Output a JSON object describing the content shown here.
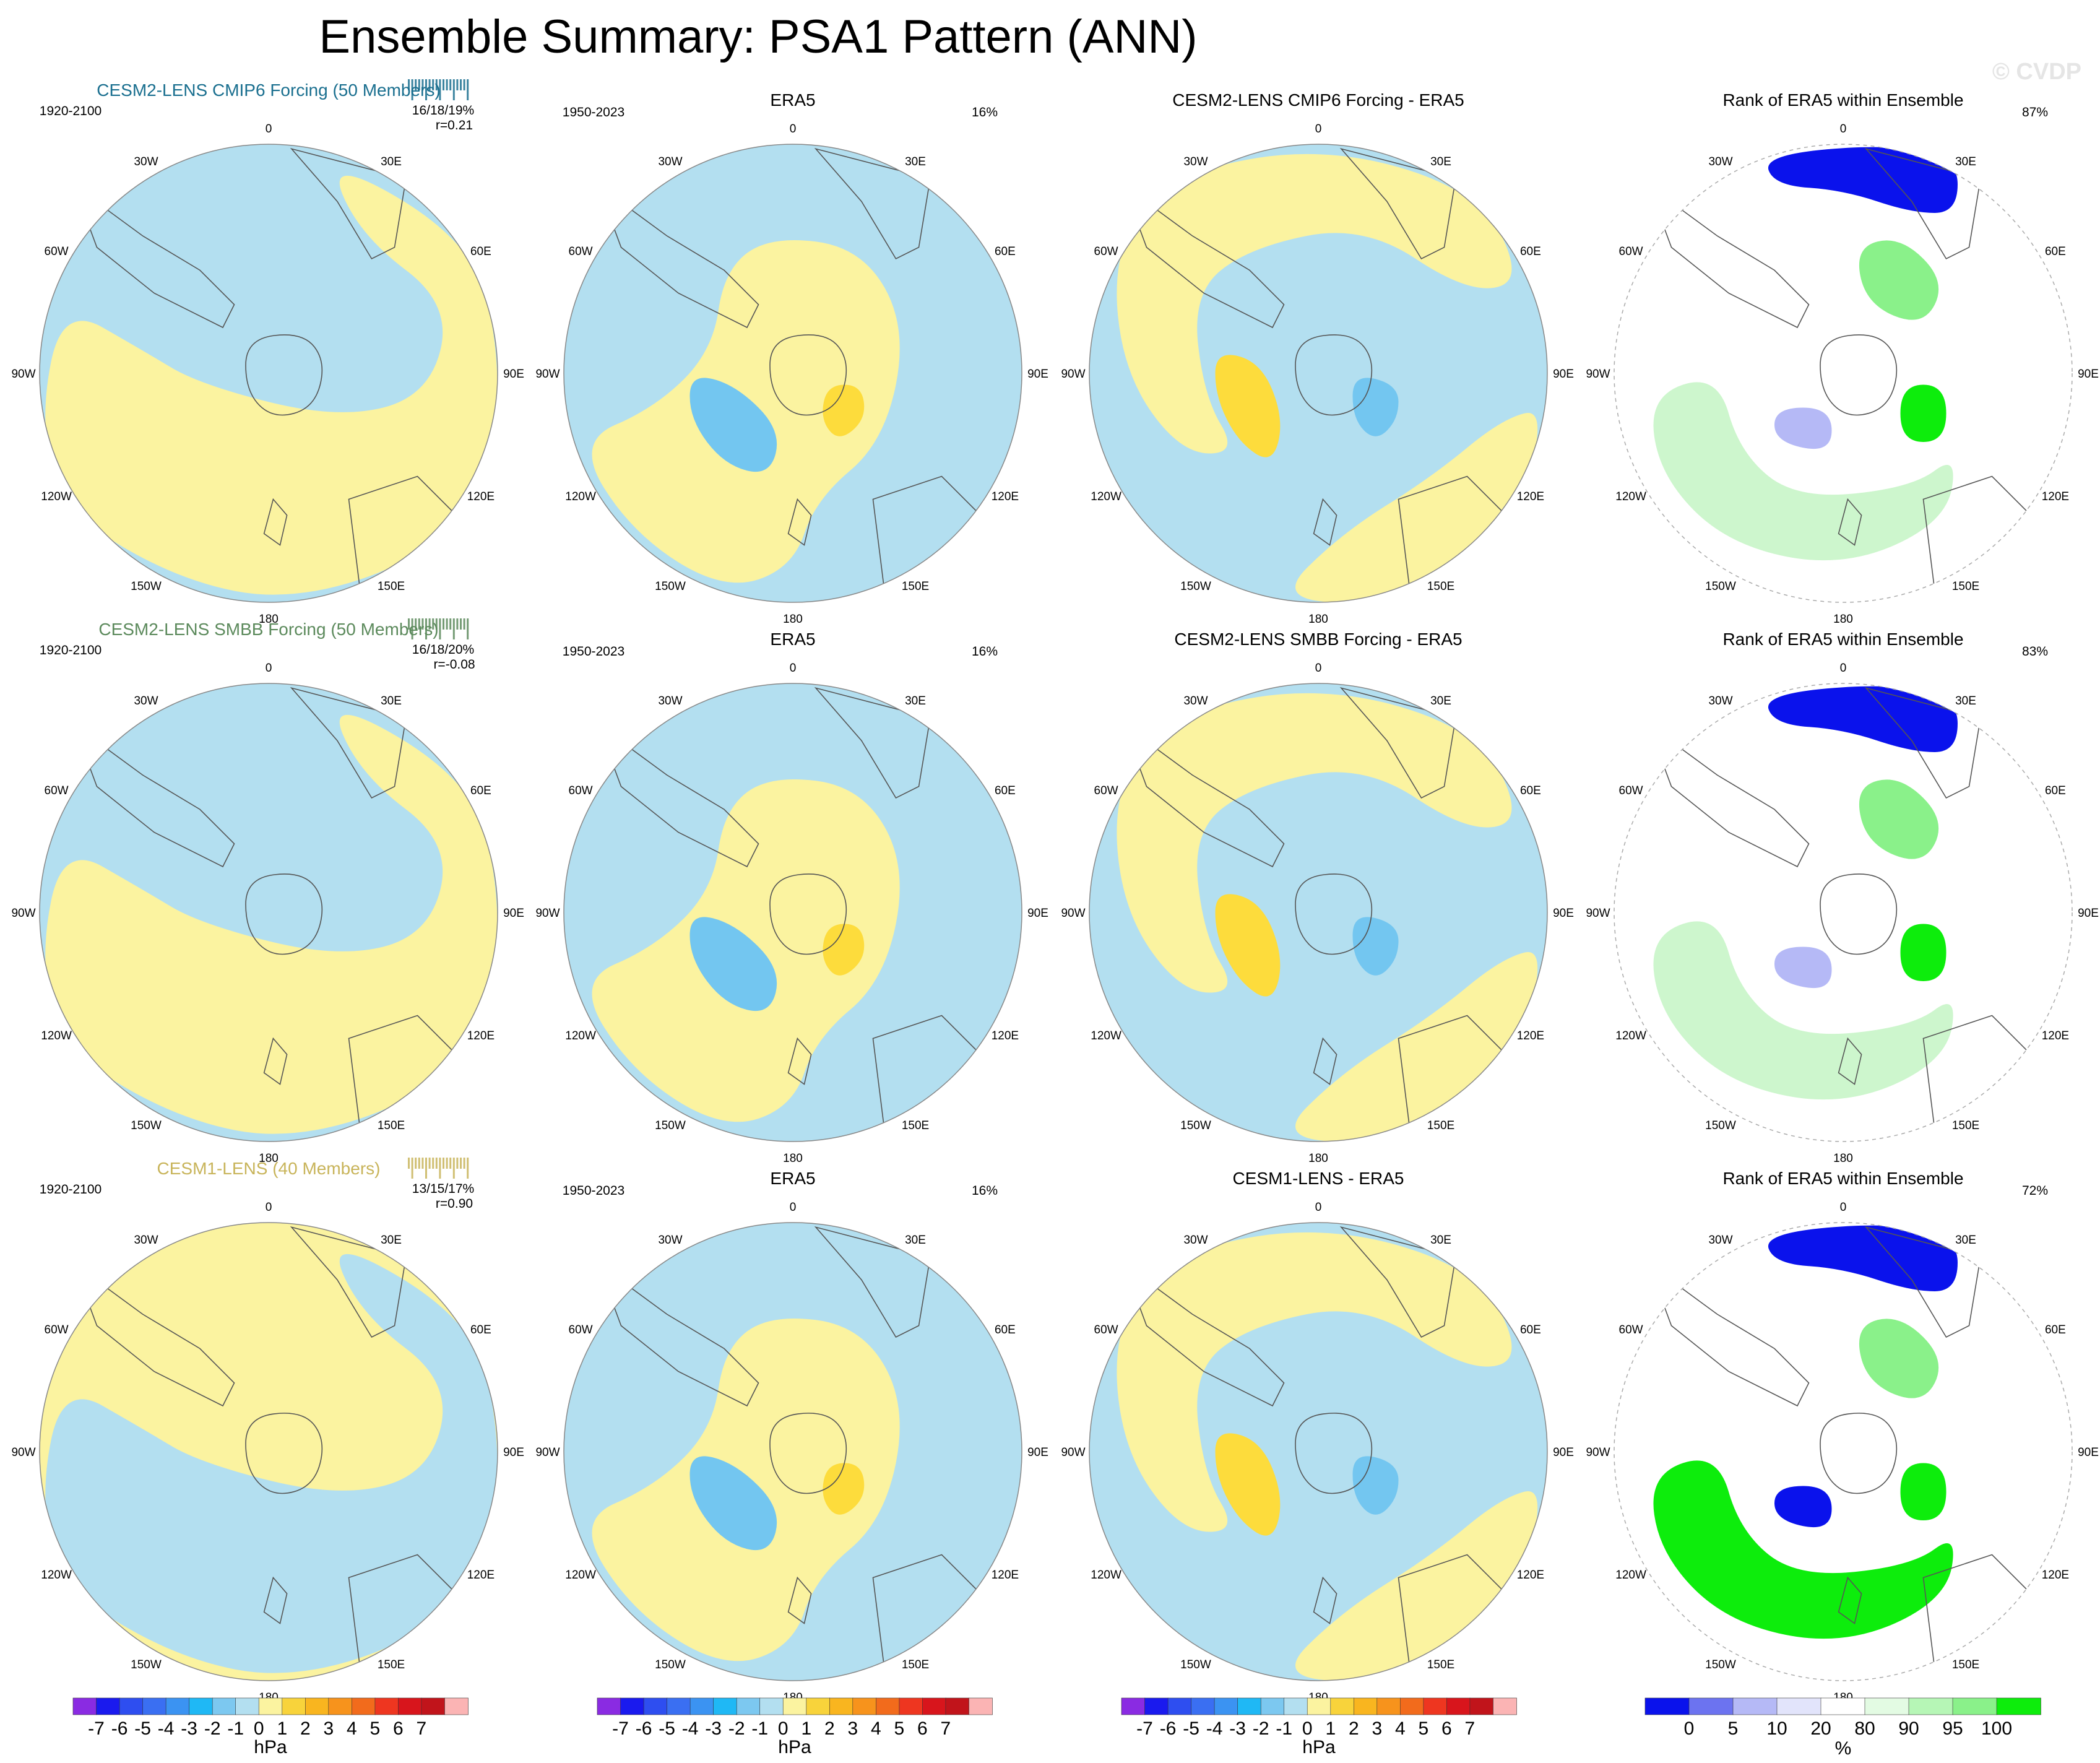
{
  "figure": {
    "title": "Ensemble Summary: PSA1 Pattern (ANN)",
    "watermark": "© CVDP"
  },
  "colors": {
    "ocean_blue": "#b3dff0",
    "land_yellow": "#fbf3a0",
    "pos_orange": "#fddc3c",
    "neg_blue": "#73c6f0",
    "rank_blue_dark": "#0a12ec",
    "rank_blue_mid": "#6c73f0",
    "rank_blue_light": "#b5b9f6",
    "rank_green_dark": "#0ded0c",
    "rank_green_mid": "#8af18a",
    "rank_green_light": "#cdf6cd"
  },
  "longitude_labels": [
    "0",
    "30E",
    "60E",
    "90E",
    "120E",
    "150E",
    "180",
    "150W",
    "120W",
    "90W",
    "60W",
    "30W"
  ],
  "chart_data": [
    {
      "type": "heatmap",
      "panel": "r1c1",
      "title": "CESM2-LENS CMIP6 Forcing (50 Members)",
      "title_color": "#1a6f8f",
      "period": "1920-2100",
      "stat": "16/18/19%",
      "corr": "r=0.21",
      "units": "hPa"
    },
    {
      "type": "heatmap",
      "panel": "r1c2",
      "title": "ERA5",
      "period": "1950-2023",
      "pct": "16%",
      "units": "hPa"
    },
    {
      "type": "heatmap",
      "panel": "r1c3",
      "title": "CESM2-LENS CMIP6 Forcing - ERA5",
      "units": "hPa"
    },
    {
      "type": "heatmap",
      "panel": "r1c4",
      "title": "Rank of ERA5 within Ensemble",
      "pct": "87%",
      "units": "%"
    },
    {
      "type": "heatmap",
      "panel": "r2c1",
      "title": "CESM2-LENS SMBB Forcing (50 Members)",
      "title_color": "#5c8a5c",
      "period": "1920-2100",
      "stat": "16/18/20%",
      "corr": "r=-0.08",
      "units": "hPa"
    },
    {
      "type": "heatmap",
      "panel": "r2c2",
      "title": "ERA5",
      "period": "1950-2023",
      "pct": "16%",
      "units": "hPa"
    },
    {
      "type": "heatmap",
      "panel": "r2c3",
      "title": "CESM2-LENS SMBB Forcing - ERA5",
      "units": "hPa"
    },
    {
      "type": "heatmap",
      "panel": "r2c4",
      "title": "Rank of ERA5 within Ensemble",
      "pct": "83%",
      "units": "%"
    },
    {
      "type": "heatmap",
      "panel": "r3c1",
      "title": "CESM1-LENS (40 Members)",
      "title_color": "#c8b45a",
      "period": "1920-2100",
      "stat": "13/15/17%",
      "corr": "r=0.90",
      "units": "hPa"
    },
    {
      "type": "heatmap",
      "panel": "r3c2",
      "title": "ERA5",
      "period": "1950-2023",
      "pct": "16%",
      "units": "hPa"
    },
    {
      "type": "heatmap",
      "panel": "r3c3",
      "title": "CESM1-LENS - ERA5",
      "units": "hPa"
    },
    {
      "type": "heatmap",
      "panel": "r3c4",
      "title": "Rank of ERA5 within Ensemble",
      "pct": "72%",
      "units": "%"
    }
  ],
  "colorbars": {
    "hpa": {
      "label": "hPa",
      "ticks": [
        "-7",
        "-6",
        "-5",
        "-4",
        "-3",
        "-2",
        "-1",
        "0",
        "1",
        "2",
        "3",
        "4",
        "5",
        "6",
        "7"
      ],
      "colors": [
        "#8a2be2",
        "#1a1aee",
        "#2e4ef0",
        "#3a6ff2",
        "#3b93f2",
        "#1fb8f5",
        "#7cc8f0",
        "#b3dff0",
        "#fbf3a0",
        "#f8d33b",
        "#f9b51f",
        "#f7931c",
        "#f26b1c",
        "#ee3620",
        "#d8151c",
        "#c1141b",
        "#fbb4b4"
      ]
    },
    "rank": {
      "label": "%",
      "ticks": [
        "0",
        "5",
        "10",
        "20",
        "80",
        "90",
        "95",
        "100"
      ],
      "colors": [
        "#0a12ec",
        "#6c73f0",
        "#b5b9f6",
        "#e2e4fb",
        "#ffffff",
        "#e3fbe3",
        "#b6f6b6",
        "#8af18a",
        "#0ded0c"
      ]
    }
  }
}
